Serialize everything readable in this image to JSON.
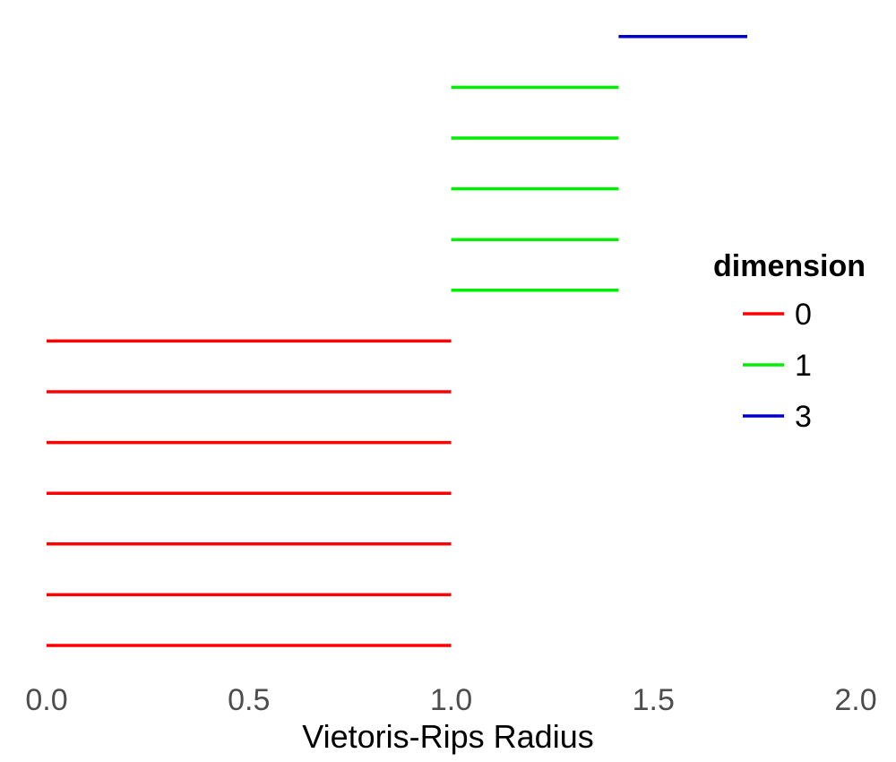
{
  "chart_data": {
    "type": "barcode",
    "xlabel": "Vietoris-Rips Radius",
    "ylabel": "",
    "xlim": [
      0,
      2
    ],
    "x_ticks": [
      "0.0",
      "0.5",
      "1.0",
      "1.5",
      "2.0"
    ],
    "grid": false,
    "legend": {
      "title": "dimension",
      "placement": "right",
      "entries": [
        {
          "label": "0",
          "color": "#ff0000"
        },
        {
          "label": "1",
          "color": "#00ee00"
        },
        {
          "label": "3",
          "color": "#0000cc"
        }
      ]
    },
    "bars": [
      {
        "dimension": "0",
        "birth": 0.0,
        "death": 1.0
      },
      {
        "dimension": "0",
        "birth": 0.0,
        "death": 1.0
      },
      {
        "dimension": "0",
        "birth": 0.0,
        "death": 1.0
      },
      {
        "dimension": "0",
        "birth": 0.0,
        "death": 1.0
      },
      {
        "dimension": "0",
        "birth": 0.0,
        "death": 1.0
      },
      {
        "dimension": "0",
        "birth": 0.0,
        "death": 1.0
      },
      {
        "dimension": "0",
        "birth": 0.0,
        "death": 1.0
      },
      {
        "dimension": "1",
        "birth": 1.0,
        "death": 1.414
      },
      {
        "dimension": "1",
        "birth": 1.0,
        "death": 1.414
      },
      {
        "dimension": "1",
        "birth": 1.0,
        "death": 1.414
      },
      {
        "dimension": "1",
        "birth": 1.0,
        "death": 1.414
      },
      {
        "dimension": "1",
        "birth": 1.0,
        "death": 1.414
      },
      {
        "dimension": "3",
        "birth": 1.414,
        "death": 1.732
      }
    ]
  }
}
